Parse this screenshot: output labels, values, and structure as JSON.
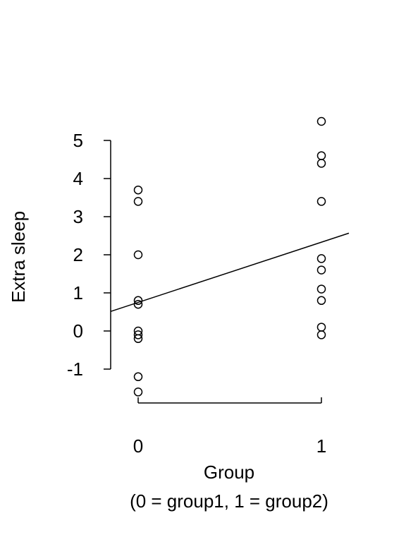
{
  "chart_data": {
    "type": "scatter",
    "title": "",
    "xlabel": "Group",
    "xlabel_sub": "(0 = group1, 1 = group2)",
    "ylabel": "Extra sleep",
    "xlim": [
      -0.15,
      1.15
    ],
    "ylim": [
      -1.8,
      5.8
    ],
    "x_ticks": [
      0,
      1
    ],
    "x_tick_labels": [
      "0",
      "1"
    ],
    "y_ticks": [
      -1,
      0,
      1,
      2,
      3,
      4,
      5
    ],
    "y_tick_labels": [
      "-1",
      "0",
      "1",
      "2",
      "3",
      "4",
      "5"
    ],
    "grid": false,
    "series": [
      {
        "x": [
          0,
          0,
          0,
          0,
          0,
          0,
          0,
          0,
          0,
          0
        ],
        "y": [
          0.7,
          -1.6,
          -0.2,
          -1.2,
          -0.1,
          3.4,
          3.7,
          0.8,
          0.0,
          2.0
        ]
      },
      {
        "x": [
          1,
          1,
          1,
          1,
          1,
          1,
          1,
          1,
          1,
          1
        ],
        "y": [
          1.9,
          0.8,
          1.1,
          0.1,
          -0.1,
          4.4,
          5.5,
          1.6,
          4.6,
          3.4
        ]
      }
    ],
    "regression_line": {
      "intercept": 0.75,
      "slope": 1.58
    },
    "colors": {
      "points": "#000000",
      "line": "#000000",
      "axes": "#000000"
    }
  }
}
